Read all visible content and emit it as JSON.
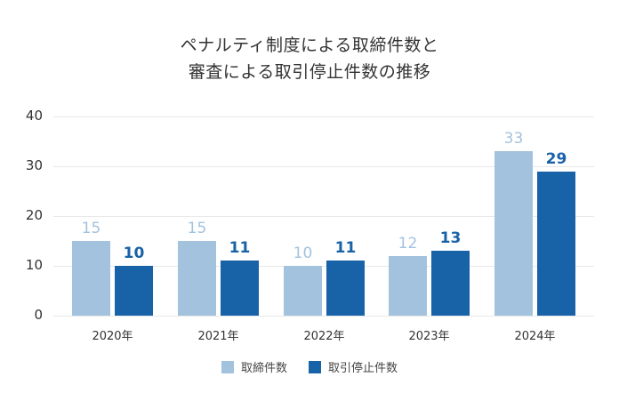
{
  "title_lines": [
    "ペナルティ制度による取締件数と",
    "審査による取引停止件数の推移"
  ],
  "colors": {
    "series1": "#a3c2de",
    "series2": "#1862a8",
    "grid": "#e9e9e9",
    "text": "#333333"
  },
  "y_ticks": [
    "0",
    "10",
    "20",
    "30",
    "40"
  ],
  "legend": [
    {
      "label": "取締件数",
      "color": "#a3c2de"
    },
    {
      "label": "取引停止件数",
      "color": "#1862a8"
    }
  ],
  "chart_data": {
    "type": "bar",
    "title": "ペナルティ制度による取締件数と審査による取引停止件数の推移",
    "categories": [
      "2020年",
      "2021年",
      "2022年",
      "2023年",
      "2024年"
    ],
    "series": [
      {
        "name": "取締件数",
        "values": [
          15,
          15,
          10,
          12,
          33
        ],
        "color": "#a3c2de"
      },
      {
        "name": "取引停止件数",
        "values": [
          10,
          11,
          11,
          13,
          29
        ],
        "color": "#1862a8"
      }
    ],
    "xlabel": "",
    "ylabel": "",
    "ylim": [
      0,
      40
    ],
    "yticks": [
      0,
      10,
      20,
      30,
      40
    ],
    "grid": true,
    "legend_position": "bottom",
    "data_labels": true
  }
}
